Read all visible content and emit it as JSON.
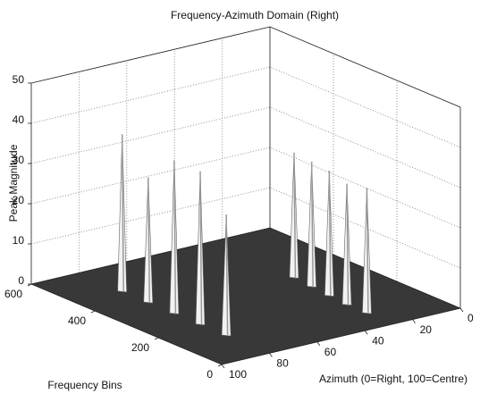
{
  "chart_data": {
    "type": "surface3d",
    "title": "Frequency-Azimuth Domain (Right)",
    "xlabel": "Azimuth (0=Right, 100=Centre)",
    "ylabel": "Frequency Bins",
    "zlabel": "Peak Magnitude",
    "xlim": [
      0,
      100
    ],
    "xticks": [
      0,
      20,
      40,
      60,
      80,
      100
    ],
    "ylim": [
      0,
      600
    ],
    "yticks": [
      0,
      200,
      400,
      600
    ],
    "zlim": [
      0,
      50
    ],
    "zticks": [
      0,
      10,
      20,
      30,
      40,
      50
    ],
    "grid": true,
    "floor_color": "#383838",
    "peak_color": "#f2f2f2",
    "peaks": {
      "azimuth": [
        80,
        80,
        80,
        80,
        80,
        25,
        26,
        27,
        28,
        28
      ],
      "frequency": [
        464,
        382,
        300,
        218,
        136,
        336,
        273,
        210,
        147,
        84
      ],
      "magnitude": [
        39,
        31,
        38,
        38,
        30,
        31,
        31,
        31,
        30,
        31
      ]
    }
  }
}
